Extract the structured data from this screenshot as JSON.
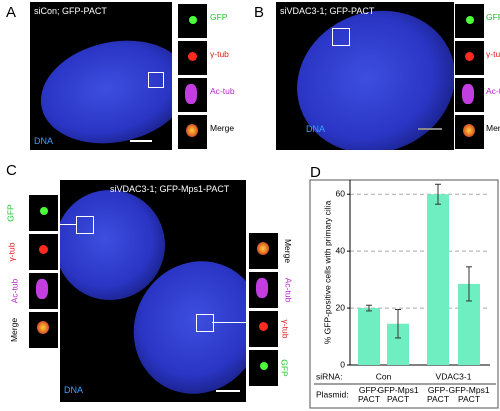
{
  "panels": {
    "A": {
      "label": "A",
      "title": "siCon; GFP-PACT",
      "stain": "DNA",
      "insets": [
        "GFP",
        "γ-tub",
        "Ac-tub",
        "Merge"
      ]
    },
    "B": {
      "label": "B",
      "title": "siVDAC3-1; GFP-PACT",
      "stain": "DNA",
      "insets": [
        "GFP",
        "γ-tub",
        "Ac-tub",
        "Merge"
      ]
    },
    "C": {
      "label": "C",
      "title": "siVDAC3-1; GFP-Mps1-PACT",
      "stain": "DNA",
      "insets_left": [
        "GFP",
        "γ-tub",
        "Ac-tub",
        "Merge"
      ],
      "insets_right": [
        "Merge",
        "Ac-tub",
        "γ-tub",
        "GFP"
      ]
    }
  },
  "chart_data": {
    "type": "bar",
    "label": "D",
    "y_label": "% GFP-positive cells with primary cilia",
    "categories": [
      "GFP-\nPACT",
      "GFP-Mps1\nPACT",
      "GFP-\nPACT",
      "GFP-Mps1\nPACT"
    ],
    "values": [
      20,
      14.5,
      60,
      28.5
    ],
    "errors": [
      1,
      5,
      3.5,
      6
    ],
    "color": "#6feec2",
    "ylim": [
      0,
      65
    ],
    "yticks": [
      0,
      20,
      40,
      60
    ],
    "grid": true,
    "row_labels": [
      "siRNA:",
      "Plasmid:"
    ],
    "groups": [
      "Con",
      "VDAC3-1"
    ]
  }
}
